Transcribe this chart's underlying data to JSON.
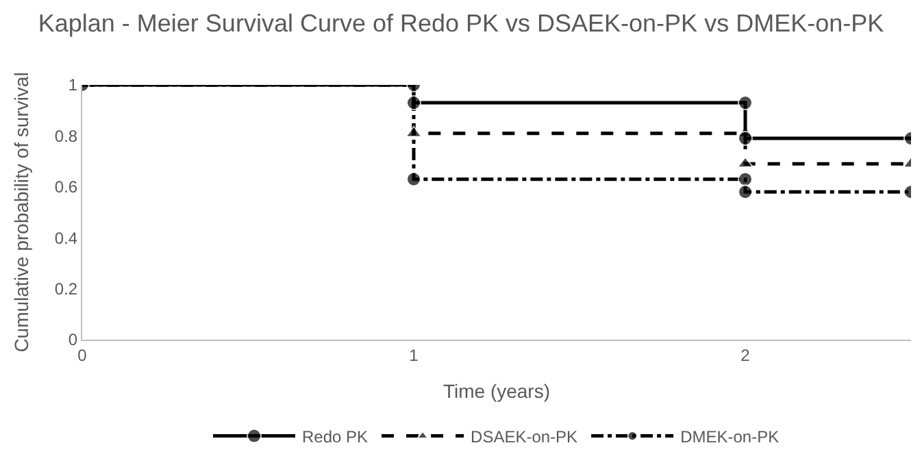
{
  "chart_data": {
    "type": "line",
    "title": "Kaplan - Meier Survival Curve of Redo PK vs DSAEK-on-PK vs DMEK-on-PK",
    "xlabel": "Time (years)",
    "ylabel": "Cumulative probability of survival",
    "xlim": [
      0,
      2.5
    ],
    "xticks": [
      0,
      1,
      2
    ],
    "ylim": [
      0,
      1
    ],
    "yticks": [
      0,
      0.2,
      0.4,
      0.6,
      0.8,
      1
    ],
    "legend": "bottom",
    "series": [
      {
        "name": "Redo PK",
        "color": "#000000",
        "marker": "circle",
        "line_style": "solid",
        "x": [
          0,
          1,
          1,
          2,
          2,
          2.5
        ],
        "values": [
          1,
          1,
          0.93,
          0.93,
          0.79,
          0.79
        ]
      },
      {
        "name": "DSAEK-on-PK",
        "color": "#000000",
        "marker": "triangle",
        "line_style": "dashed",
        "x": [
          0,
          1,
          1,
          2,
          2,
          2.5
        ],
        "values": [
          1,
          1,
          0.81,
          0.81,
          0.69,
          0.69
        ]
      },
      {
        "name": "DMEK-on-PK",
        "color": "#000000",
        "marker": "circle",
        "line_style": "dashdot",
        "x": [
          0,
          1,
          1,
          2,
          2,
          2.5
        ],
        "values": [
          1,
          1,
          0.63,
          0.63,
          0.58,
          0.58
        ]
      }
    ]
  }
}
